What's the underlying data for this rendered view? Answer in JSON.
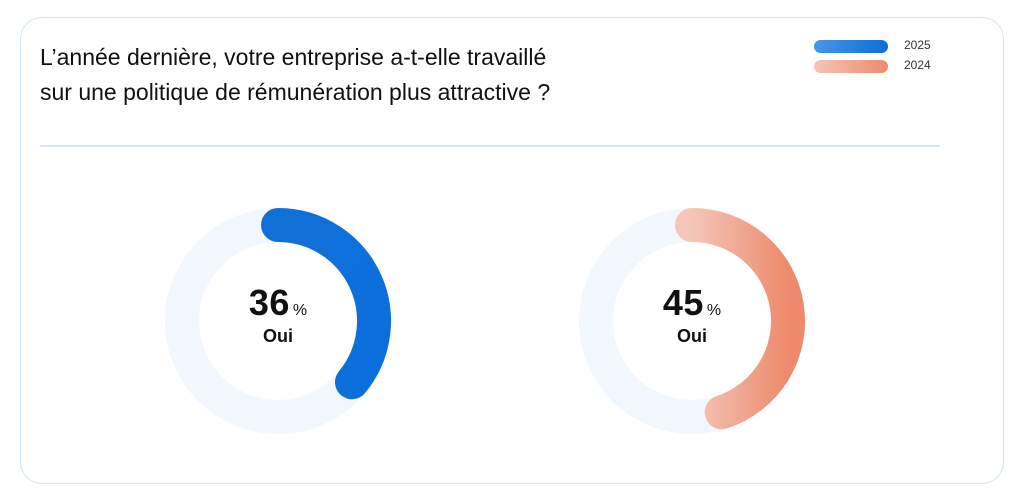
{
  "title_lines": [
    "L’année dernière, votre entreprise a-t-elle travaillé",
    "sur une politique de rémunération plus attractive ?"
  ],
  "colors": {
    "track": "#f1f7fc",
    "series_2025_start": "#1170d8",
    "series_2025_end": "#0a6fdc",
    "series_2024_start": "#f5c5b9",
    "series_2024_end": "#ed8a6b"
  },
  "chart_data": {
    "type": "donut",
    "legend": [
      "2025",
      "2024"
    ],
    "legend_position": "top-right",
    "series": [
      {
        "name": "2025",
        "value": 36,
        "unit": "%",
        "label": "Oui"
      },
      {
        "name": "2024",
        "value": 45,
        "unit": "%",
        "label": "Oui"
      }
    ]
  }
}
